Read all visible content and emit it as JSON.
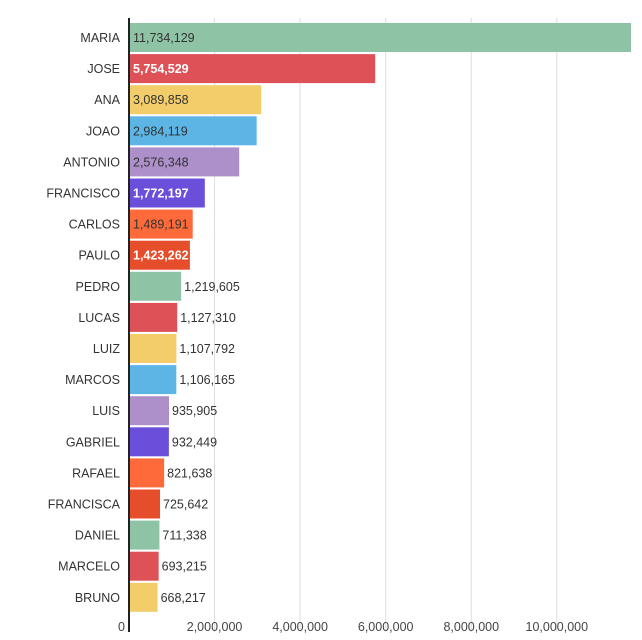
{
  "chart_data": {
    "type": "bar",
    "orientation": "horizontal",
    "title": "",
    "xlabel": "",
    "ylabel": "",
    "categories": [
      "MARIA",
      "JOSE",
      "ANA",
      "JOAO",
      "ANTONIO",
      "FRANCISCO",
      "CARLOS",
      "PAULO",
      "PEDRO",
      "LUCAS",
      "LUIZ",
      "MARCOS",
      "LUIS",
      "GABRIEL",
      "RAFAEL",
      "FRANCISCA",
      "DANIEL",
      "MARCELO",
      "BRUNO"
    ],
    "values": [
      11734129,
      5754529,
      3089858,
      2984119,
      2576348,
      1772197,
      1489191,
      1423262,
      1219605,
      1127310,
      1107792,
      1106165,
      935905,
      932449,
      821638,
      725642,
      711338,
      693215,
      668217
    ],
    "value_labels": [
      "11,734,129",
      "5,754,529",
      "3,089,858",
      "2,984,119",
      "2,576,348",
      "1,772,197",
      "1,489,191",
      "1,423,262",
      "1,219,605",
      "1,127,310",
      "1,107,792",
      "1,106,165",
      "935,905",
      "932,449",
      "821,638",
      "725,642",
      "711,338",
      "693,215",
      "668,217"
    ],
    "colors": [
      "#8fc3a6",
      "#de5257",
      "#f2cd69",
      "#5db5e5",
      "#ad90c9",
      "#6b4fdb",
      "#ff6a3a",
      "#e64d2a",
      "#8fc3a6",
      "#de5257",
      "#f2cd69",
      "#5db5e5",
      "#ad90c9",
      "#6b4fdb",
      "#ff6a3a",
      "#e64d2a",
      "#8fc3a6",
      "#de5257",
      "#f2cd69"
    ],
    "label_inside": [
      true,
      true,
      true,
      true,
      true,
      true,
      true,
      true,
      false,
      false,
      false,
      false,
      false,
      false,
      false,
      false,
      false,
      false,
      false
    ],
    "label_color_white": [
      false,
      true,
      false,
      false,
      false,
      true,
      false,
      true,
      false,
      false,
      false,
      false,
      false,
      false,
      false,
      false,
      false,
      false,
      false
    ],
    "xlim": [
      0,
      11734129
    ],
    "x_ticks": [
      0,
      2000000,
      4000000,
      6000000,
      8000000,
      10000000
    ],
    "x_tick_labels": [
      "0",
      "2,000,000",
      "4,000,000",
      "6,000,000",
      "8,000,000",
      "10,000,000"
    ],
    "grid": true
  }
}
